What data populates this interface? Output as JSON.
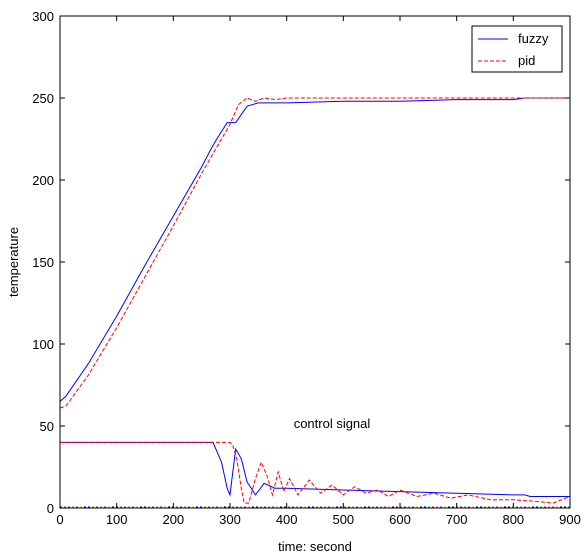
{
  "chart_data": {
    "type": "line",
    "title": "",
    "xlabel": "time: second",
    "ylabel": "temperature",
    "xlim": [
      0,
      900
    ],
    "ylim": [
      0,
      300
    ],
    "xticks": [
      0,
      100,
      200,
      300,
      400,
      500,
      600,
      700,
      800,
      900
    ],
    "yticks": [
      0,
      50,
      100,
      150,
      200,
      250,
      300
    ],
    "grid": false,
    "legend_position": "top-right",
    "annotation": "control signal",
    "colors": {
      "fuzzy": "#0000ff",
      "pid": "#ff0000"
    },
    "series": [
      {
        "name": "fuzzy",
        "line_style": "solid",
        "temperature": {
          "x": [
            0,
            10,
            50,
            100,
            150,
            200,
            250,
            265,
            275,
            295,
            310,
            330,
            350,
            400,
            500,
            600,
            700,
            800,
            820,
            900
          ],
          "y": [
            65,
            68,
            88,
            117,
            148,
            178,
            208,
            218,
            224,
            235,
            235,
            245,
            247,
            247,
            248,
            248,
            249,
            249,
            250,
            250
          ]
        },
        "control_signal": {
          "x": [
            0,
            200,
            270,
            285,
            295,
            300,
            305,
            310,
            320,
            330,
            345,
            360,
            380,
            400,
            500,
            600,
            700,
            800,
            820,
            830,
            900
          ],
          "y": [
            40,
            40,
            40,
            28,
            12,
            8,
            22,
            36,
            30,
            16,
            8,
            15,
            12,
            12,
            11,
            10,
            9,
            8,
            8,
            7,
            7
          ]
        }
      },
      {
        "name": "pid",
        "line_style": "dashed",
        "temperature": {
          "x": [
            0,
            10,
            50,
            100,
            150,
            200,
            250,
            300,
            315,
            330,
            345,
            360,
            380,
            400,
            450,
            500,
            600,
            700,
            800,
            900
          ],
          "y": [
            61,
            62,
            81,
            110,
            141,
            172,
            204,
            234,
            246,
            250,
            248,
            250,
            249,
            250,
            250,
            250,
            250,
            250,
            250,
            250
          ]
        },
        "control_signal": {
          "x": [
            0,
            200,
            300,
            305,
            312,
            320,
            325,
            333,
            345,
            355,
            365,
            375,
            385,
            395,
            405,
            420,
            440,
            460,
            480,
            500,
            520,
            540,
            560,
            580,
            600,
            630,
            660,
            690,
            720,
            760,
            800,
            840,
            870,
            900
          ],
          "y": [
            40,
            40,
            40,
            38,
            30,
            12,
            3,
            3,
            18,
            28,
            20,
            8,
            22,
            10,
            18,
            8,
            17,
            9,
            14,
            8,
            13,
            9,
            11,
            7,
            11,
            7,
            9,
            6,
            8,
            5,
            5,
            4,
            3,
            7
          ]
        }
      }
    ]
  }
}
